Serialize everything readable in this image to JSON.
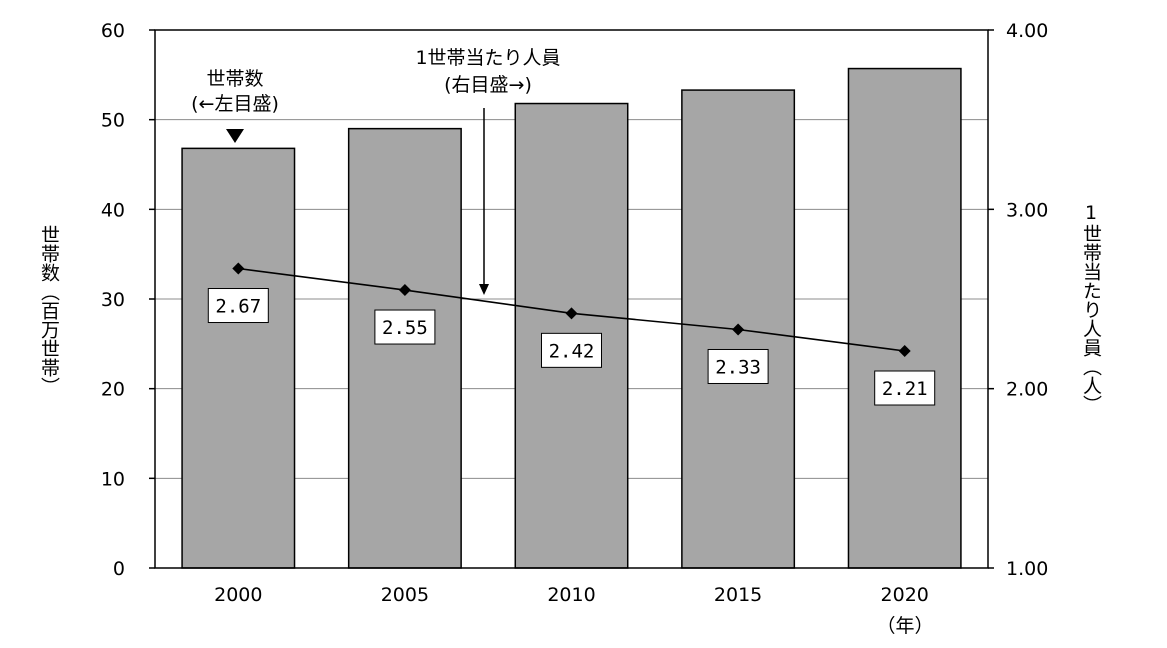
{
  "chart_data": {
    "type": "bar",
    "categories": [
      "2000",
      "2005",
      "2010",
      "2015",
      "2020"
    ],
    "x_unit_label": "（年）",
    "series": [
      {
        "name": "世帯数",
        "type": "bar",
        "axis": "left",
        "values": [
          46.8,
          49.0,
          51.8,
          53.3,
          55.7
        ],
        "color": "#a6a6a6"
      },
      {
        "name": "1世帯当たり人員",
        "type": "line",
        "axis": "right",
        "values": [
          2.67,
          2.55,
          2.42,
          2.33,
          2.21
        ],
        "labels": [
          "2.67",
          "2.55",
          "2.42",
          "2.33",
          "2.21"
        ],
        "color": "#000000"
      }
    ],
    "y_left": {
      "label": "世帯数（百万世帯）",
      "ylim": [
        0,
        60
      ],
      "ticks": [
        "0",
        "10",
        "20",
        "30",
        "40",
        "50",
        "60"
      ]
    },
    "y_right": {
      "label": "1世帯当たり人員（人）",
      "ylim": [
        1.0,
        4.0
      ],
      "ticks": [
        "1.00",
        "2.00",
        "3.00",
        "4.00"
      ]
    },
    "annotations": {
      "bar_note": [
        "世帯数",
        "(←左目盛)"
      ],
      "line_note": [
        "1世帯当たり人員",
        "(右目盛→)"
      ]
    },
    "grid": true,
    "legend": "none"
  }
}
